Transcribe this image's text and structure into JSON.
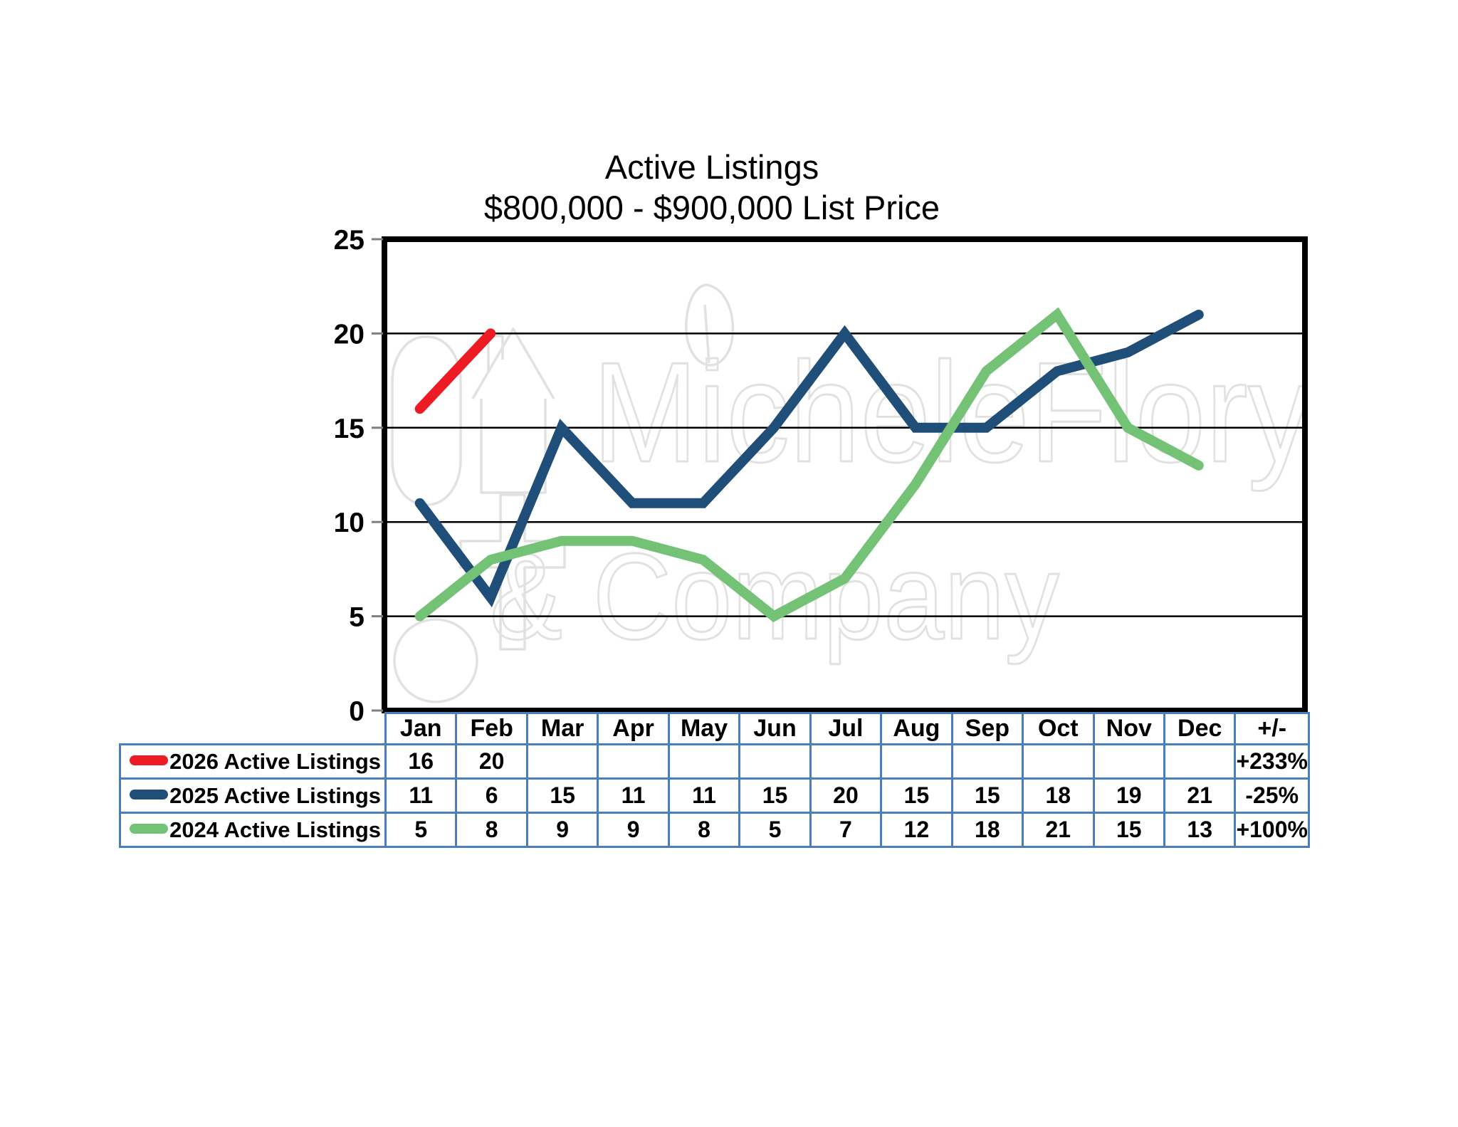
{
  "chart_data": {
    "type": "line",
    "title": "Active Listings",
    "subtitle": "$800,000 - $900,000 List Price",
    "categories": [
      "Jan",
      "Feb",
      "Mar",
      "Apr",
      "May",
      "Jun",
      "Jul",
      "Aug",
      "Sep",
      "Oct",
      "Nov",
      "Dec"
    ],
    "change_column_label": "+/-",
    "ylim": [
      0,
      25
    ],
    "ytick_interval": 5,
    "ytick_labels": [
      "0",
      "5",
      "10",
      "15",
      "20",
      "25"
    ],
    "grid": "horizontal-black",
    "legend_position": "table-left",
    "series": [
      {
        "name": "2026 Active Listings",
        "color": "#ed1c24",
        "values": [
          16,
          20,
          null,
          null,
          null,
          null,
          null,
          null,
          null,
          null,
          null,
          null
        ],
        "change": "+233%"
      },
      {
        "name": "2025 Active Listings",
        "color": "#1f4e79",
        "values": [
          11,
          6,
          15,
          11,
          11,
          15,
          20,
          15,
          15,
          18,
          19,
          21
        ],
        "change": "-25%"
      },
      {
        "name": "2024 Active Listings",
        "color": "#74c276",
        "values": [
          5,
          8,
          9,
          9,
          8,
          5,
          7,
          12,
          18,
          21,
          15,
          13
        ],
        "change": "+100%"
      }
    ],
    "watermark": {
      "line1": "MicheleFlory",
      "line2": "& Company"
    },
    "colors": {
      "plot_border": "#000000",
      "gridline": "#000000",
      "tick": "#7f7f7f",
      "axis_label": "#000000",
      "table_border": "#4a7ebc",
      "watermark": "#e1e1e1"
    }
  }
}
